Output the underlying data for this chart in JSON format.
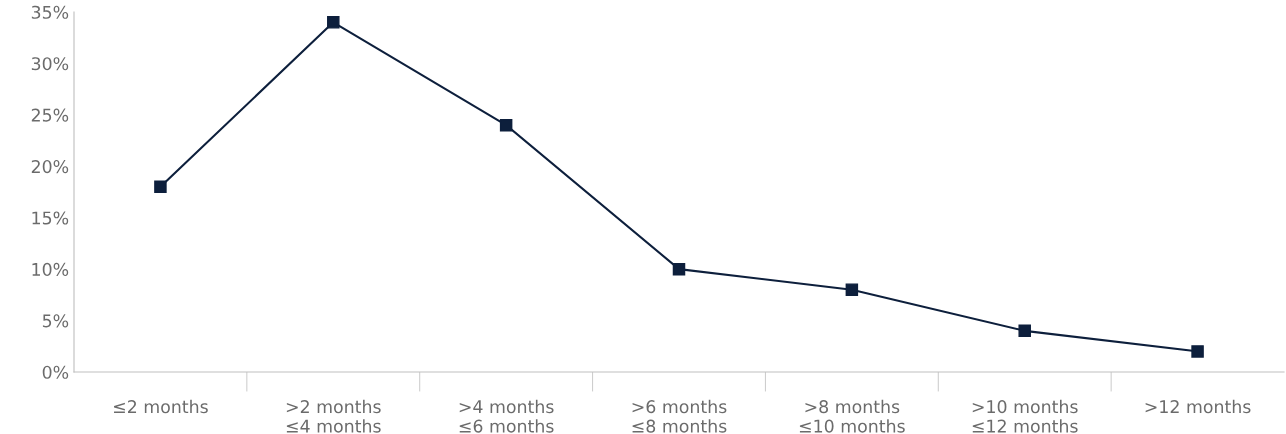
{
  "chart_data": {
    "type": "line",
    "categories": [
      "≤2 months",
      ">2 months\n≤4 months",
      ">4 months\n≤6 months",
      ">6 months\n≤8 months",
      ">8 months\n≤10 months",
      ">10 months\n≤12 months",
      ">12 months"
    ],
    "series": [
      {
        "color": "#0d1f3c",
        "values": [
          18,
          34,
          24,
          10,
          8,
          4,
          2
        ]
      }
    ],
    "ylim": [
      0,
      35
    ],
    "yticks": [
      {
        "value": 0,
        "label": "0%"
      },
      {
        "value": 5,
        "label": "5%"
      },
      {
        "value": 10,
        "label": "10%"
      },
      {
        "value": 15,
        "label": "15%"
      },
      {
        "value": 20,
        "label": "20%"
      },
      {
        "value": 25,
        "label": "25%"
      },
      {
        "value": 30,
        "label": "30%"
      },
      {
        "value": 35,
        "label": "35%"
      }
    ],
    "marker": "square",
    "line_style": "solid",
    "grid": false,
    "legend": false
  }
}
